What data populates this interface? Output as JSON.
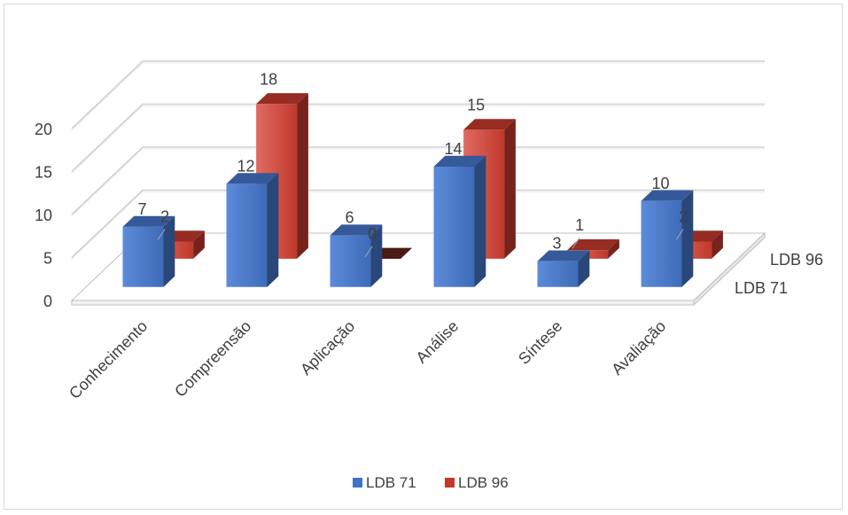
{
  "chart_data": {
    "type": "bar",
    "title": "",
    "xlabel": "",
    "ylabel": "",
    "ylim": [
      0,
      25
    ],
    "yticks": [
      0,
      5,
      10,
      15,
      20
    ],
    "grid": true,
    "legend_position": "bottom",
    "categories": [
      "Conhecimento",
      "Compreensão",
      "Aplicação",
      "Análise",
      "Síntese",
      "Avaliação"
    ],
    "series": [
      {
        "name": "LDB 71",
        "values": [
          7,
          12,
          6,
          14,
          3,
          10
        ],
        "color": "#4472c4"
      },
      {
        "name": "LDB 96",
        "values": [
          2,
          18,
          0,
          15,
          1,
          2
        ],
        "color": "#c0392b"
      }
    ],
    "depth_axis_labels": [
      "LDB 96",
      "LDB 71"
    ]
  }
}
